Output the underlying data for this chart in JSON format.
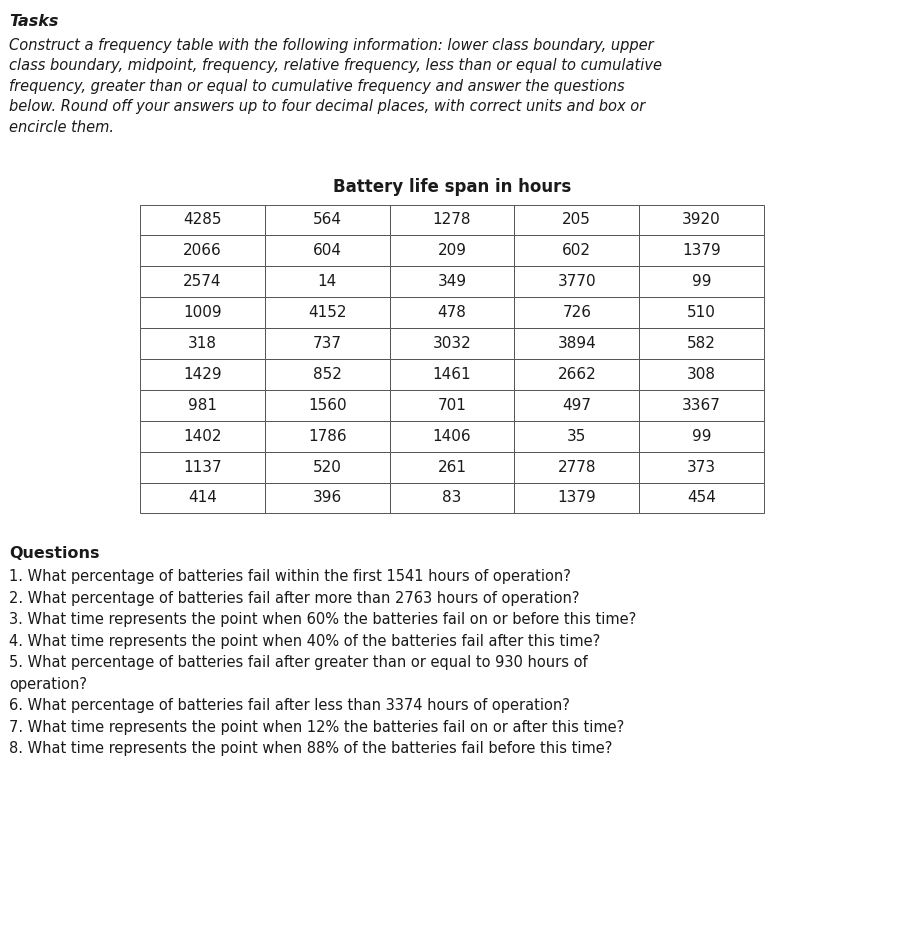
{
  "title_bold": "Tasks",
  "intro_text": "Construct a frequency table with the following information: lower class boundary, upper class boundary, midpoint, frequency, relative frequency, less than or equal to cumulative frequency, greater than or equal to cumulative frequency and answer the questions below. Round off your answers up to four decimal places, with correct units and box or encircle them.",
  "table_title": "Battery life span in hours",
  "table_data": [
    [
      4285,
      564,
      1278,
      205,
      3920
    ],
    [
      2066,
      604,
      209,
      602,
      1379
    ],
    [
      2574,
      14,
      349,
      3770,
      99
    ],
    [
      1009,
      4152,
      478,
      726,
      510
    ],
    [
      318,
      737,
      3032,
      3894,
      582
    ],
    [
      1429,
      852,
      1461,
      2662,
      308
    ],
    [
      981,
      1560,
      701,
      497,
      3367
    ],
    [
      1402,
      1786,
      1406,
      35,
      99
    ],
    [
      1137,
      520,
      261,
      2778,
      373
    ],
    [
      414,
      396,
      83,
      1379,
      454
    ]
  ],
  "questions_header": "Questions",
  "questions": [
    "1. What percentage of batteries fail within the first 1541 hours of operation?",
    "2. What percentage of batteries fail after more than 2763 hours of operation?",
    "3. What time represents the point when 60% the batteries fail on or before this time?",
    "4. What time represents the point when 40% of the batteries fail after this time?",
    "5. What percentage of batteries fail after greater than or equal to 930 hours of operation?",
    "6. What percentage of batteries fail after less than 3374 hours of operation?",
    "7. What time represents the point when 12% the batteries fail on or after this time?",
    "8. What time represents the point when 88% of the batteries fail before this time?"
  ],
  "bg_color": "#ffffff",
  "text_color": "#1a1a1a",
  "table_border_color": "#555555",
  "table_bg": "#ffffff",
  "figsize": [
    9.04,
    9.36
  ],
  "dpi": 100
}
